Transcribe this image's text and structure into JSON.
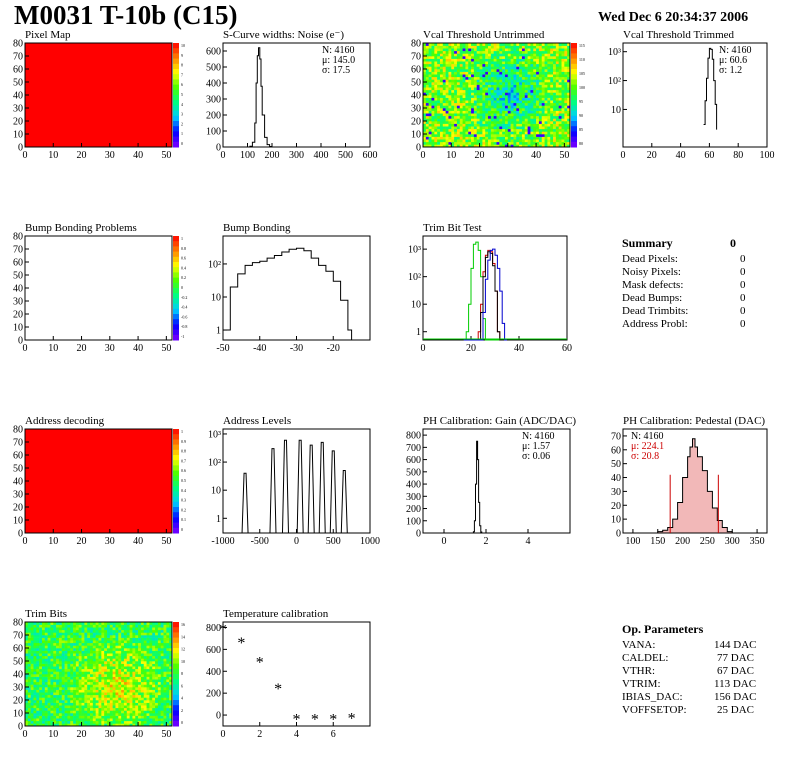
{
  "header": {
    "title": "M0031 T-10b (C15)",
    "date": "Wed Dec  6 20:34:37 2006"
  },
  "colors": {
    "frame": "#000000",
    "red_fill": "#ff0000",
    "hist_line": "#000000",
    "trim_green": "#00cc00",
    "trim_red": "#cc0000",
    "trim_blue": "#0000cc",
    "pedestal_fill": "#f2b8b8"
  },
  "chart_data": [
    {
      "id": "pixel-map",
      "type": "heatmap",
      "title": "Pixel Map",
      "xlim": [
        0,
        52
      ],
      "ylim": [
        0,
        80
      ],
      "xticks": [
        0,
        10,
        20,
        30,
        40,
        50
      ],
      "yticks": [
        0,
        10,
        20,
        30,
        40,
        50,
        60,
        70,
        80
      ],
      "fill": "uniform_max",
      "colorbar_ticks": [
        "10",
        "9",
        "8",
        "7",
        "6",
        "5",
        "4",
        "3",
        "2",
        "1",
        "0"
      ]
    },
    {
      "id": "scurve-noise",
      "type": "line",
      "title": "S-Curve widths: Noise (e⁻)",
      "xlim": [
        0,
        600
      ],
      "ylim": [
        0,
        650
      ],
      "xticks": [
        0,
        100,
        200,
        300,
        400,
        500,
        600
      ],
      "yticks": [
        0,
        100,
        200,
        300,
        400,
        500,
        600
      ],
      "stats": [
        "N: 4160",
        "μ: 145.0",
        "σ: 17.5"
      ],
      "x": [
        100,
        110,
        120,
        130,
        135,
        140,
        145,
        150,
        155,
        160,
        170,
        180,
        190,
        200
      ],
      "values": [
        0,
        5,
        30,
        150,
        400,
        570,
        620,
        550,
        380,
        200,
        60,
        15,
        3,
        0
      ]
    },
    {
      "id": "vcal-untrimmed",
      "type": "heatmap",
      "title": "Vcal Threshold Untrimmed",
      "xlim": [
        0,
        52
      ],
      "ylim": [
        0,
        80
      ],
      "xticks": [
        0,
        10,
        20,
        30,
        40,
        50
      ],
      "yticks": [
        0,
        10,
        20,
        30,
        40,
        50,
        60,
        70,
        80
      ],
      "fill": "noise_center_low",
      "colorbar_ticks": [
        "115",
        "110",
        "105",
        "100",
        "95",
        "90",
        "85",
        "80"
      ]
    },
    {
      "id": "vcal-trimmed",
      "type": "line",
      "title": "Vcal Threshold Trimmed",
      "xlim": [
        0,
        100
      ],
      "ylim": [
        0.5,
        2000
      ],
      "log_y": true,
      "xticks": [
        0,
        20,
        40,
        60,
        80,
        100
      ],
      "yticks": [
        10,
        100,
        1000
      ],
      "ytick_labels": [
        "10",
        "10²",
        "10³"
      ],
      "stats": [
        "N: 4160",
        "μ: 60.6",
        "σ:  1.2"
      ],
      "x": [
        56,
        57,
        58,
        59,
        60,
        61,
        62,
        63,
        64,
        65
      ],
      "values": [
        3,
        20,
        120,
        600,
        1300,
        1200,
        550,
        100,
        15,
        2
      ]
    },
    {
      "id": "bump-problems",
      "type": "heatmap",
      "title": "Bump Bonding Problems",
      "xlim": [
        0,
        52
      ],
      "ylim": [
        0,
        80
      ],
      "xticks": [
        0,
        10,
        20,
        30,
        40,
        50
      ],
      "yticks": [
        0,
        10,
        20,
        30,
        40,
        50,
        60,
        70,
        80
      ],
      "fill": "empty",
      "colorbar_ticks": [
        "1",
        "0.8",
        "0.6",
        "0.4",
        "0.2",
        "0",
        "-0.2",
        "-0.4",
        "-0.6",
        "-0.8",
        "-1"
      ]
    },
    {
      "id": "bump-bonding",
      "type": "line",
      "title": "Bump Bonding",
      "xlim": [
        -50,
        -10
      ],
      "ylim": [
        0.5,
        700
      ],
      "log_y": true,
      "xticks": [
        -50,
        -40,
        -30,
        -20
      ],
      "yticks": [
        1,
        10,
        100
      ],
      "ytick_labels": [
        "1",
        "10",
        "10²"
      ],
      "x": [
        -50,
        -48,
        -46,
        -44,
        -42,
        -40,
        -38,
        -36,
        -34,
        -32,
        -30,
        -28,
        -26,
        -24,
        -22,
        -20,
        -18,
        -16,
        -15
      ],
      "values": [
        1,
        20,
        50,
        90,
        110,
        120,
        150,
        180,
        230,
        280,
        300,
        250,
        150,
        90,
        60,
        30,
        8,
        1,
        0.5
      ]
    },
    {
      "id": "trim-bit-test",
      "type": "line",
      "title": "Trim Bit Test",
      "xlim": [
        0,
        60
      ],
      "ylim": [
        0.5,
        3000
      ],
      "log_y": true,
      "xticks": [
        0,
        20,
        40,
        60
      ],
      "yticks": [
        1,
        10,
        100,
        1000
      ],
      "ytick_labels": [
        "1",
        "10",
        "10²",
        "10³"
      ],
      "x": [
        17,
        18,
        19,
        20,
        21,
        22,
        23,
        24,
        25,
        26,
        27,
        28,
        29,
        30,
        31,
        32,
        33,
        34,
        35
      ],
      "series": [
        {
          "color": "#00cc00",
          "values": [
            0.5,
            1,
            10,
            200,
            1500,
            1800,
            900,
            100,
            3,
            0.5,
            0.5,
            0.5,
            0.5,
            0.5,
            0.5,
            0.5,
            0.5,
            0.5,
            0.5
          ]
        },
        {
          "color": "#cc0000",
          "values": [
            0.5,
            0.5,
            0.5,
            0.5,
            0.5,
            0.5,
            1,
            10,
            150,
            600,
            900,
            800,
            300,
            30,
            1,
            0.5,
            0.5,
            0.5,
            0.5
          ]
        },
        {
          "color": "#000000",
          "values": [
            0.5,
            0.5,
            0.5,
            0.5,
            0.5,
            0.5,
            0.5,
            5,
            100,
            500,
            800,
            700,
            250,
            30,
            1,
            0.5,
            0.5,
            0.5,
            0.5
          ]
        },
        {
          "color": "#0000cc",
          "values": [
            0.5,
            0.5,
            0.5,
            0.5,
            0.5,
            0.5,
            0.5,
            0.5,
            5,
            80,
            400,
            900,
            1000,
            600,
            200,
            30,
            2,
            0.5,
            0.5
          ]
        }
      ]
    },
    {
      "id": "address-decoding",
      "type": "heatmap",
      "title": "Address decoding",
      "xlim": [
        0,
        52
      ],
      "ylim": [
        0,
        80
      ],
      "xticks": [
        0,
        10,
        20,
        30,
        40,
        50
      ],
      "yticks": [
        0,
        10,
        20,
        30,
        40,
        50,
        60,
        70,
        80
      ],
      "fill": "uniform_max",
      "colorbar_ticks": [
        "1",
        "0.9",
        "0.8",
        "0.7",
        "0.6",
        "0.5",
        "0.4",
        "0.3",
        "0.2",
        "0.1",
        "0"
      ]
    },
    {
      "id": "address-levels",
      "type": "line",
      "title": "Address Levels",
      "xlim": [
        -1000,
        1000
      ],
      "ylim": [
        0.3,
        1500
      ],
      "log_y": true,
      "xticks": [
        -1000,
        -500,
        0,
        500,
        1000
      ],
      "yticks": [
        1,
        10,
        100,
        1000
      ],
      "ytick_labels": [
        "1",
        "10",
        "10²",
        "10³"
      ],
      "peaks": [
        -700,
        -320,
        -150,
        50,
        200,
        350,
        500,
        650
      ],
      "peak_values": [
        40,
        300,
        600,
        600,
        400,
        500,
        250,
        50
      ]
    },
    {
      "id": "ph-gain",
      "type": "line",
      "title": "PH Calibration: Gain (ADC/DAC)",
      "xlim": [
        -1,
        6
      ],
      "ylim": [
        0,
        850
      ],
      "xticks": [
        0,
        2,
        4
      ],
      "yticks": [
        0,
        100,
        200,
        300,
        400,
        500,
        600,
        700,
        800
      ],
      "stats": [
        "N: 4160",
        "μ: 1.57",
        "σ: 0.06"
      ],
      "x": [
        1.35,
        1.4,
        1.45,
        1.5,
        1.55,
        1.6,
        1.65,
        1.7,
        1.75,
        1.8
      ],
      "values": [
        0,
        10,
        100,
        400,
        750,
        600,
        250,
        60,
        8,
        0
      ]
    },
    {
      "id": "ph-pedestal",
      "type": "area",
      "title": "PH Calibration: Pedestal (DAC)",
      "xlim": [
        80,
        370
      ],
      "ylim": [
        0,
        75
      ],
      "xticks": [
        100,
        150,
        200,
        250,
        300,
        350
      ],
      "yticks": [
        0,
        10,
        20,
        30,
        40,
        50,
        60,
        70
      ],
      "stats": [
        "N: 4160",
        "μ: 224.1",
        "σ: 20.8"
      ],
      "cut_lines": [
        175,
        272
      ],
      "x": [
        150,
        160,
        170,
        180,
        190,
        200,
        210,
        215,
        220,
        225,
        230,
        240,
        250,
        260,
        270,
        280,
        290,
        300
      ],
      "values": [
        1,
        2,
        4,
        10,
        22,
        40,
        55,
        62,
        68,
        62,
        55,
        45,
        30,
        18,
        9,
        4,
        1,
        0
      ]
    },
    {
      "id": "trim-bits",
      "type": "heatmap",
      "title": "Trim Bits",
      "xlim": [
        0,
        52
      ],
      "ylim": [
        0,
        80
      ],
      "xticks": [
        0,
        10,
        20,
        30,
        40,
        50
      ],
      "yticks": [
        0,
        10,
        20,
        30,
        40,
        50,
        60,
        70,
        80
      ],
      "fill": "trim_noise",
      "colorbar_ticks": [
        "16",
        "14",
        "12",
        "10",
        "8",
        "6",
        "4",
        "2",
        "0"
      ]
    },
    {
      "id": "temp-calib",
      "type": "scatter",
      "title": "Temperature calibration",
      "xlim": [
        0,
        8
      ],
      "ylim": [
        -100,
        850
      ],
      "xticks": [
        0,
        2,
        4,
        6
      ],
      "yticks": [
        0,
        200,
        400,
        600,
        800
      ],
      "x": [
        0,
        1,
        2,
        3,
        4,
        5,
        6,
        7
      ],
      "values": [
        780,
        660,
        480,
        240,
        -40,
        -40,
        -40,
        -30
      ]
    }
  ],
  "summary": {
    "title": "Summary",
    "total": "0",
    "rows": [
      {
        "label": "Dead Pixels:",
        "value": "0"
      },
      {
        "label": "Noisy Pixels:",
        "value": "0"
      },
      {
        "label": "Mask defects:",
        "value": "0"
      },
      {
        "label": "Dead Bumps:",
        "value": "0"
      },
      {
        "label": "Dead Trimbits:",
        "value": "0"
      },
      {
        "label": "Address Probl:",
        "value": "0"
      }
    ]
  },
  "op_params": {
    "title": "Op. Parameters",
    "rows": [
      {
        "label": "VANA:",
        "value": "144 DAC"
      },
      {
        "label": "CALDEL:",
        "value": "77 DAC"
      },
      {
        "label": "VTHR:",
        "value": "67 DAC"
      },
      {
        "label": "VTRIM:",
        "value": "113 DAC"
      },
      {
        "label": "IBIAS_DAC:",
        "value": "156 DAC"
      },
      {
        "label": "VOFFSETOP:",
        "value": "25 DAC"
      }
    ]
  }
}
